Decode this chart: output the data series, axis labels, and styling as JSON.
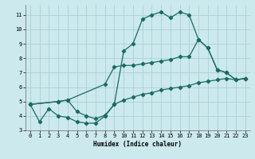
{
  "xlabel": "Humidex (Indice chaleur)",
  "bg_color": "#cce9ed",
  "grid_color": "#aad0d5",
  "line_color": "#1a6b60",
  "xlim": [
    -0.5,
    23.5
  ],
  "ylim": [
    3.0,
    11.7
  ],
  "xticks": [
    0,
    1,
    2,
    3,
    4,
    5,
    6,
    7,
    8,
    9,
    10,
    11,
    12,
    13,
    14,
    15,
    16,
    17,
    18,
    19,
    20,
    21,
    22,
    23
  ],
  "yticks": [
    3,
    4,
    5,
    6,
    7,
    8,
    9,
    10,
    11
  ],
  "line1_x": [
    0,
    1,
    2,
    3,
    4,
    5,
    6,
    7,
    8,
    9,
    10,
    11,
    12,
    13,
    14,
    15,
    16,
    17,
    18,
    19,
    20,
    21,
    22,
    23
  ],
  "line1_y": [
    4.8,
    3.6,
    4.5,
    4.0,
    3.9,
    3.6,
    3.5,
    3.5,
    4.0,
    4.8,
    8.5,
    9.0,
    10.7,
    11.0,
    11.2,
    10.8,
    11.2,
    11.0,
    9.3,
    8.7,
    7.2,
    7.0,
    6.5,
    6.6
  ],
  "line2_x": [
    0,
    3,
    4,
    8,
    9,
    10,
    11,
    12,
    13,
    14,
    15,
    16,
    17,
    18,
    19,
    20,
    21,
    22,
    23
  ],
  "line2_y": [
    4.8,
    5.0,
    5.1,
    6.2,
    7.4,
    7.5,
    7.5,
    7.6,
    7.7,
    7.8,
    7.9,
    8.1,
    8.1,
    9.3,
    8.7,
    7.2,
    7.0,
    6.5,
    6.6
  ],
  "line3_x": [
    0,
    3,
    4,
    5,
    6,
    7,
    8,
    9,
    10,
    11,
    12,
    13,
    14,
    15,
    16,
    17,
    18,
    19,
    20,
    21,
    22,
    23
  ],
  "line3_y": [
    4.8,
    5.0,
    5.1,
    4.3,
    4.0,
    3.8,
    4.05,
    4.8,
    5.1,
    5.3,
    5.5,
    5.6,
    5.8,
    5.9,
    6.0,
    6.1,
    6.3,
    6.4,
    6.5,
    6.6,
    6.5,
    6.6
  ]
}
